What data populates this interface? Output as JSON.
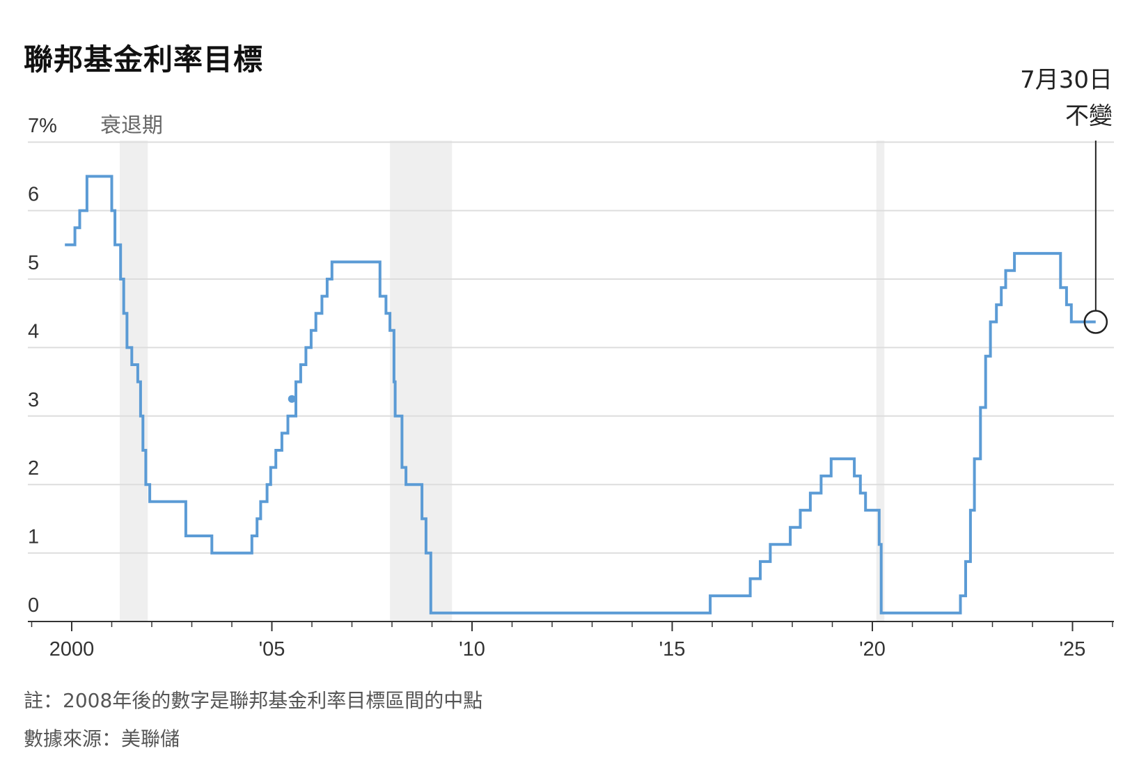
{
  "title": "聯邦基金利率目標",
  "notes": {
    "note": "註：2008年後的數字是聯邦基金利率目標區間的中點",
    "source": "數據來源：美聯儲"
  },
  "colors": {
    "line": "#5b9bd5",
    "recession": "#efefef",
    "grid": "#dddddd",
    "axis": "#333333"
  },
  "chart_data": {
    "type": "line",
    "title": "聯邦基金利率目標",
    "xlabel": "",
    "ylabel": "",
    "unit": "%",
    "ylim": [
      0,
      7
    ],
    "xlim": [
      1999.0,
      2026.0
    ],
    "grid": true,
    "y_ticks": [
      {
        "value": 0,
        "label": "0"
      },
      {
        "value": 1,
        "label": "1"
      },
      {
        "value": 2,
        "label": "2"
      },
      {
        "value": 3,
        "label": "3"
      },
      {
        "value": 4,
        "label": "4"
      },
      {
        "value": 5,
        "label": "5"
      },
      {
        "value": 6,
        "label": "6"
      },
      {
        "value": 7,
        "label": "7%"
      }
    ],
    "x_ticks": [
      {
        "value": 2000,
        "label": "2000"
      },
      {
        "value": 2005,
        "label": "'05"
      },
      {
        "value": 2010,
        "label": "'10"
      },
      {
        "value": 2015,
        "label": "'15"
      },
      {
        "value": 2020,
        "label": "'20"
      },
      {
        "value": 2025,
        "label": "'25"
      }
    ],
    "recession_label": "衰退期",
    "recessions": [
      {
        "start": 2001.2,
        "end": 2001.9
      },
      {
        "start": 2007.95,
        "end": 2009.5
      },
      {
        "start": 2020.1,
        "end": 2020.3
      }
    ],
    "series": [
      {
        "values": [
          [
            1999.83,
            5.5
          ],
          [
            2000.08,
            5.75
          ],
          [
            2000.2,
            6.0
          ],
          [
            2000.38,
            6.5
          ],
          [
            2001.0,
            6.0
          ],
          [
            2001.08,
            5.5
          ],
          [
            2001.22,
            5.0
          ],
          [
            2001.3,
            4.5
          ],
          [
            2001.38,
            4.0
          ],
          [
            2001.5,
            3.75
          ],
          [
            2001.65,
            3.5
          ],
          [
            2001.72,
            3.0
          ],
          [
            2001.78,
            2.5
          ],
          [
            2001.85,
            2.0
          ],
          [
            2001.95,
            1.75
          ],
          [
            2002.85,
            1.25
          ],
          [
            2003.5,
            1.0
          ],
          [
            2004.5,
            1.25
          ],
          [
            2004.63,
            1.5
          ],
          [
            2004.72,
            1.75
          ],
          [
            2004.88,
            2.0
          ],
          [
            2004.97,
            2.25
          ],
          [
            2005.1,
            2.5
          ],
          [
            2005.25,
            2.75
          ],
          [
            2005.4,
            3.0
          ],
          [
            2005.6,
            3.5
          ],
          [
            2005.72,
            3.75
          ],
          [
            2005.85,
            4.0
          ],
          [
            2005.98,
            4.25
          ],
          [
            2006.1,
            4.5
          ],
          [
            2006.25,
            4.75
          ],
          [
            2006.38,
            5.0
          ],
          [
            2006.5,
            5.25
          ],
          [
            2007.7,
            4.75
          ],
          [
            2007.85,
            4.5
          ],
          [
            2007.95,
            4.25
          ],
          [
            2008.05,
            3.5
          ],
          [
            2008.08,
            3.0
          ],
          [
            2008.25,
            2.25
          ],
          [
            2008.35,
            2.0
          ],
          [
            2008.75,
            1.5
          ],
          [
            2008.85,
            1.0
          ],
          [
            2008.97,
            0.125
          ],
          [
            2015.95,
            0.375
          ],
          [
            2016.95,
            0.625
          ],
          [
            2017.2,
            0.875
          ],
          [
            2017.45,
            1.125
          ],
          [
            2017.95,
            1.375
          ],
          [
            2018.2,
            1.625
          ],
          [
            2018.45,
            1.875
          ],
          [
            2018.72,
            2.125
          ],
          [
            2018.97,
            2.375
          ],
          [
            2019.55,
            2.125
          ],
          [
            2019.7,
            1.875
          ],
          [
            2019.83,
            1.625
          ],
          [
            2020.17,
            1.125
          ],
          [
            2020.22,
            0.125
          ],
          [
            2022.2,
            0.375
          ],
          [
            2022.33,
            0.875
          ],
          [
            2022.45,
            1.625
          ],
          [
            2022.55,
            2.375
          ],
          [
            2022.7,
            3.125
          ],
          [
            2022.83,
            3.875
          ],
          [
            2022.95,
            4.375
          ],
          [
            2023.1,
            4.625
          ],
          [
            2023.22,
            4.875
          ],
          [
            2023.33,
            5.125
          ],
          [
            2023.55,
            5.375
          ],
          [
            2024.7,
            4.875
          ],
          [
            2024.85,
            4.625
          ],
          [
            2024.97,
            4.375
          ],
          [
            2025.58,
            4.375
          ]
        ]
      }
    ],
    "marker_point": [
      2005.5,
      3.25
    ],
    "annotation": {
      "date_text": "7月30日",
      "status_text": "不變",
      "x": 2025.58,
      "y": 4.375
    }
  }
}
